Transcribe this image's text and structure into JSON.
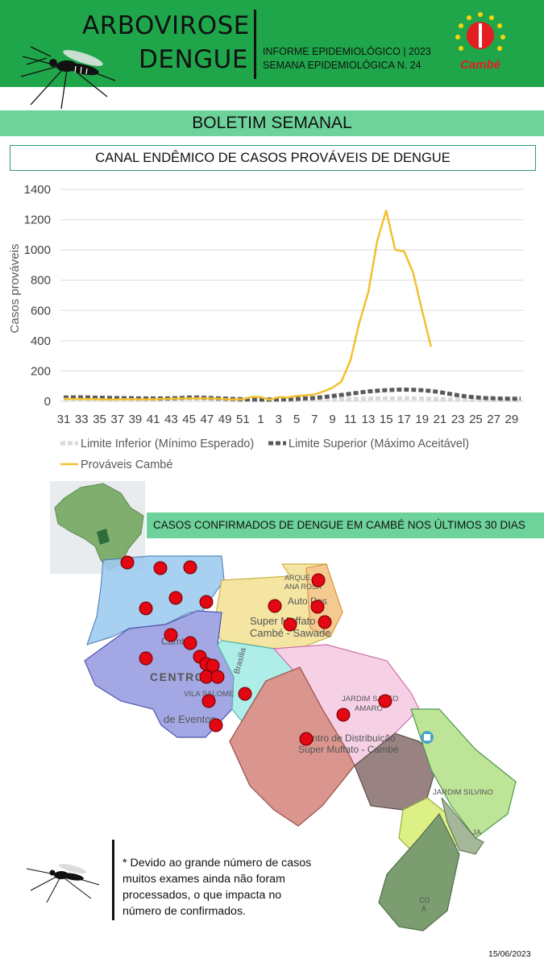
{
  "header": {
    "title_line1": "ARBOVIROSE",
    "title_line2": "DENGUE",
    "info_line1": "INFORME EPIDEMIOLÓGICO | 2023",
    "info_line2": "SEMANA EPIDEMIOLÓGICA  N. 24",
    "logo_text": "Cambé",
    "colors": {
      "bar": "#1fa64a",
      "logo": "#e41e20"
    }
  },
  "section_title": "BOLETIM SEMANAL",
  "chart_title": "CANAL ENDÊMICO DE CASOS PROVÁVEIS DE DENGUE",
  "chart_data": {
    "type": "line",
    "ylabel": "Casos prováveis",
    "xlabel": "",
    "ylim": [
      0,
      1400
    ],
    "yticks": [
      0,
      200,
      400,
      600,
      800,
      1000,
      1200,
      1400
    ],
    "grid": true,
    "legend_position": "bottom",
    "x_weeks": [
      31,
      32,
      33,
      34,
      35,
      36,
      37,
      38,
      39,
      40,
      41,
      42,
      43,
      44,
      45,
      46,
      47,
      48,
      49,
      50,
      51,
      52,
      1,
      2,
      3,
      4,
      5,
      6,
      7,
      8,
      9,
      10,
      11,
      12,
      13,
      14,
      15,
      16,
      17,
      18,
      19,
      20,
      21,
      22,
      23,
      24,
      25,
      26,
      27,
      28,
      29,
      30
    ],
    "x_tick_labels": [
      "31",
      "33",
      "35",
      "37",
      "39",
      "41",
      "43",
      "45",
      "47",
      "49",
      "51",
      "1",
      "3",
      "5",
      "7",
      "9",
      "11",
      "13",
      "15",
      "17",
      "19",
      "21",
      "23",
      "25",
      "27",
      "29"
    ],
    "series": [
      {
        "name": "Limite Inferior (Mínimo Esperado)",
        "color": "#d9d9d9",
        "style": "dashed",
        "values": [
          12,
          12,
          12,
          11,
          11,
          10,
          10,
          9,
          9,
          9,
          9,
          9,
          10,
          11,
          12,
          12,
          11,
          9,
          8,
          8,
          7,
          7,
          7,
          7,
          7,
          7,
          8,
          9,
          10,
          11,
          12,
          13,
          15,
          16,
          18,
          19,
          20,
          20,
          20,
          19,
          18,
          17,
          15,
          13,
          11,
          10,
          9,
          8,
          8,
          8,
          8,
          8
        ]
      },
      {
        "name": "Limite Superior (Máximo Aceitável)",
        "color": "#595959",
        "style": "dashed",
        "values": [
          25,
          26,
          26,
          25,
          24,
          23,
          22,
          21,
          20,
          19,
          19,
          19,
          20,
          22,
          25,
          25,
          23,
          20,
          18,
          16,
          14,
          13,
          12,
          12,
          13,
          14,
          16,
          19,
          22,
          28,
          35,
          42,
          50,
          58,
          65,
          70,
          74,
          76,
          77,
          76,
          73,
          68,
          60,
          50,
          40,
          32,
          26,
          22,
          20,
          18,
          17,
          17
        ]
      },
      {
        "name": "Prováveis Cambé",
        "color": "#f2c12e",
        "style": "solid",
        "values": [
          18,
          15,
          16,
          15,
          14,
          12,
          13,
          15,
          14,
          13,
          14,
          16,
          17,
          18,
          19,
          20,
          19,
          17,
          15,
          13,
          14,
          30,
          28,
          10,
          28,
          25,
          35,
          40,
          45,
          65,
          90,
          130,
          270,
          520,
          720,
          1060,
          1260,
          1000,
          990,
          850,
          600,
          360
        ]
      }
    ]
  },
  "map": {
    "banner": "CASOS CONFIRMADOS DE DENGUE EM CAMBÉ NOS ÚLTIMOS 30 DIAS",
    "place_labels": [
      "ARQUE",
      "ANA ROSA",
      "Auto Pos",
      "Super Muffato",
      "Cambé - Sawade",
      "Cambé",
      "CENTRO",
      "Brasília",
      "VILA SALOME",
      "de Eventos",
      "JARDIM SANTO",
      "AMARO",
      "Centro de Distribuição",
      "Super Muffato - Cambé",
      "JARDIM SILVINO",
      "JA",
      "CO",
      "A"
    ],
    "case_marker_color": "#e30613"
  },
  "footnote": {
    "line1": "* Devido ao grande número de casos",
    "line2": "muitos exames ainda não foram",
    "line3": "processados, o que impacta no",
    "line4": "número de confirmados."
  },
  "date": "15/06/2023"
}
